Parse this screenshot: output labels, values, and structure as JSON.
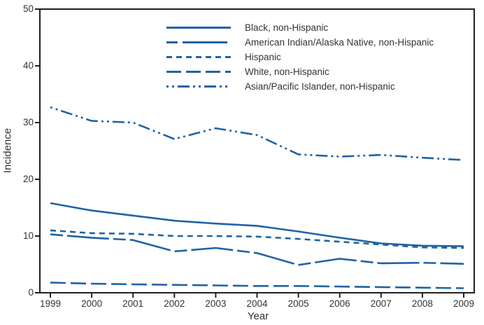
{
  "figure": {
    "background": "#ffffff",
    "line_color": "#2063a3",
    "axis_color": "#231f20",
    "text_color": "#333333"
  },
  "chart_data": {
    "type": "line",
    "title": "",
    "xlabel": "Year",
    "ylabel": "Incidence",
    "x": [
      1999,
      2000,
      2001,
      2002,
      2003,
      2004,
      2005,
      2006,
      2007,
      2008,
      2009
    ],
    "ylim": [
      0,
      50
    ],
    "yticks": [
      0,
      10,
      20,
      30,
      40,
      50
    ],
    "grid": false,
    "legend_position": "top-center-inside",
    "series": [
      {
        "name": "Black, non-Hispanic",
        "dash": "solid",
        "values": [
          15.8,
          14.5,
          13.6,
          12.7,
          12.2,
          11.8,
          10.8,
          9.7,
          8.7,
          8.3,
          8.2
        ]
      },
      {
        "name": "American Indian/Alaska Native, non-Hispanic",
        "dash": "dash-long-dash",
        "values": [
          10.3,
          9.7,
          9.3,
          7.3,
          7.9,
          7.0,
          4.9,
          6.0,
          5.2,
          5.3,
          5.1
        ]
      },
      {
        "name": "Hispanic",
        "dash": "short-dash",
        "values": [
          11.0,
          10.5,
          10.4,
          10.0,
          10.0,
          9.9,
          9.5,
          9.0,
          8.5,
          8.0,
          7.9
        ]
      },
      {
        "name": "White, non-Hispanic",
        "dash": "long-dash",
        "values": [
          1.8,
          1.6,
          1.5,
          1.4,
          1.3,
          1.2,
          1.2,
          1.1,
          1.0,
          0.9,
          0.8
        ]
      },
      {
        "name": "Asian/Pacific Islander, non-Hispanic",
        "dash": "dash-dot-dot",
        "values": [
          32.7,
          30.3,
          30.0,
          27.1,
          29.0,
          27.8,
          24.4,
          24.0,
          24.3,
          23.8,
          23.4
        ]
      }
    ]
  }
}
